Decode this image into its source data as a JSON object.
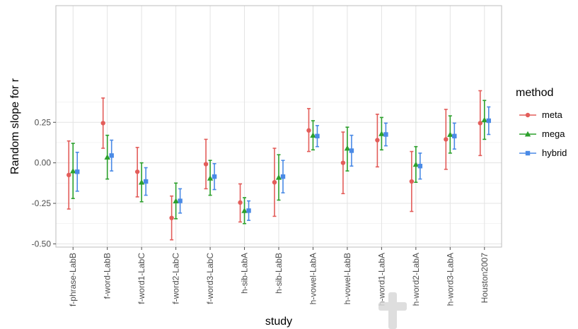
{
  "chart_data": {
    "type": "scatter",
    "xlabel": "study",
    "ylabel": "Random slope for r",
    "ylim": [
      -0.52,
      0.97
    ],
    "yticks": [
      -0.5,
      -0.25,
      0.0,
      0.25
    ],
    "ytick_labels": [
      "-0.50",
      "-0.25",
      "0.00",
      "0.25"
    ],
    "grid": true,
    "legend": {
      "title": "method",
      "placement": "right"
    },
    "categories": [
      "f-phrase-LabB",
      "f-word-LabB",
      "f-word1-LabC",
      "f-word2-LabC",
      "f-word3-LabC",
      "h-sib-LabA",
      "h-sib-LabB",
      "h-vowel-LabA",
      "h-vowel-LabB",
      "h-word1-LabA",
      "h-word2-LabA",
      "h-word3-LabA",
      "Houston2007"
    ],
    "series": [
      {
        "name": "meta",
        "color": "#e35d5a",
        "marker": "circle",
        "values": [
          -0.075,
          0.245,
          -0.055,
          -0.34,
          -0.008,
          -0.245,
          -0.12,
          0.2,
          0.0,
          0.14,
          -0.115,
          0.145,
          0.245
        ],
        "lower": [
          -0.285,
          0.09,
          -0.21,
          -0.475,
          -0.16,
          -0.365,
          -0.33,
          0.07,
          -0.19,
          -0.025,
          -0.3,
          -0.04,
          0.045
        ],
        "upper": [
          0.135,
          0.4,
          0.095,
          -0.205,
          0.145,
          -0.13,
          0.09,
          0.335,
          0.19,
          0.3,
          0.07,
          0.33,
          0.445
        ]
      },
      {
        "name": "mega",
        "color": "#2ca02c",
        "marker": "triangle",
        "values": [
          -0.05,
          0.035,
          -0.12,
          -0.235,
          -0.095,
          -0.295,
          -0.09,
          0.17,
          0.09,
          0.18,
          -0.01,
          0.175,
          0.265
        ],
        "lower": [
          -0.22,
          -0.1,
          -0.24,
          -0.345,
          -0.2,
          -0.375,
          -0.23,
          0.08,
          -0.05,
          0.08,
          -0.12,
          0.06,
          0.145
        ],
        "upper": [
          0.12,
          0.17,
          0.0,
          -0.125,
          0.015,
          -0.215,
          0.05,
          0.26,
          0.22,
          0.28,
          0.1,
          0.29,
          0.385
        ]
      },
      {
        "name": "hybrid",
        "color": "#4a8ae6",
        "marker": "square",
        "values": [
          -0.055,
          0.045,
          -0.115,
          -0.235,
          -0.085,
          -0.295,
          -0.085,
          0.165,
          0.075,
          0.175,
          -0.02,
          0.165,
          0.26
        ],
        "lower": [
          -0.175,
          -0.05,
          -0.2,
          -0.31,
          -0.165,
          -0.355,
          -0.185,
          0.1,
          -0.02,
          0.105,
          -0.1,
          0.085,
          0.175
        ],
        "upper": [
          0.065,
          0.14,
          -0.03,
          -0.16,
          -0.005,
          -0.235,
          0.015,
          0.23,
          0.17,
          0.245,
          0.06,
          0.245,
          0.345
        ]
      }
    ]
  },
  "watermark": {
    "icon": "cross-watermark-icon",
    "color": "#d9d9d9"
  }
}
